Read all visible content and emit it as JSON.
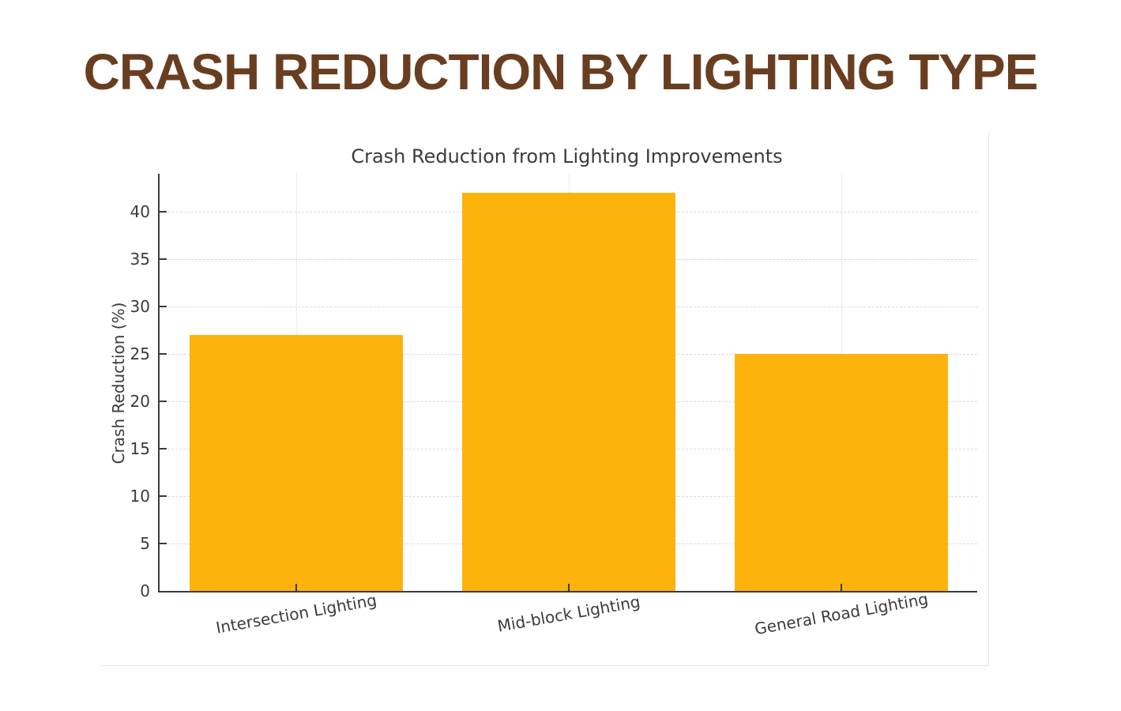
{
  "page": {
    "title": "CRASH REDUCTION BY LIGHTING TYPE"
  },
  "colors": {
    "page_title": "#693E20",
    "bar": "#FDB30C",
    "chart_text": "#3B3B3B",
    "axis": "#3A3A3A",
    "grid": "#D9D9D9",
    "card_border": "#E7E7E7"
  },
  "chart_data": {
    "type": "bar",
    "title": "Crash Reduction from Lighting Improvements",
    "categories": [
      "Intersection Lighting",
      "Mid-block Lighting",
      "General Road Lighting"
    ],
    "values": [
      27,
      42,
      25
    ],
    "xlabel": "",
    "ylabel": "Crash Reduction (%)",
    "ylim": [
      0,
      44
    ],
    "yticks": [
      0,
      5,
      10,
      15,
      20,
      25,
      30,
      35,
      40
    ],
    "grid": "on",
    "legend": "none",
    "bar_color": "#FDB30C",
    "x_tick_rotation_deg": -10
  }
}
